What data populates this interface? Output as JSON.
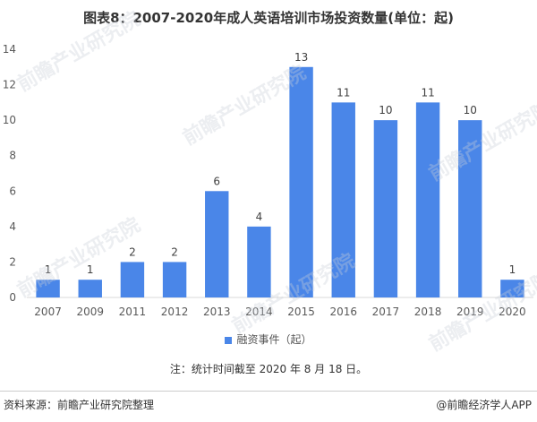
{
  "title": "图表8：2007-2020年成人英语培训市场投资数量(单位：起)",
  "chart_data": {
    "type": "bar",
    "categories": [
      "2007",
      "2009",
      "2011",
      "2012",
      "2013",
      "2014",
      "2015",
      "2016",
      "2017",
      "2018",
      "2019",
      "2020"
    ],
    "series": [
      {
        "name": "融资事件（起）",
        "values": [
          1,
          1,
          2,
          2,
          6,
          4,
          13,
          11,
          10,
          11,
          10,
          1
        ]
      }
    ],
    "yticks": [
      0,
      2,
      4,
      6,
      8,
      10,
      12,
      14
    ],
    "ylim": [
      0,
      14
    ],
    "grid": false,
    "legend": "bottom",
    "xlabel": "",
    "ylabel": ""
  },
  "colors": {
    "bar": "#4a86e8",
    "axis": "#d9d9d9"
  },
  "note": "注：统计时间截至 2020 年 8 月 18 日。",
  "source": "资料来源：前瞻产业研究院整理",
  "brand": "@前瞻经济学人APP",
  "watermark": "前瞻产业研究院"
}
